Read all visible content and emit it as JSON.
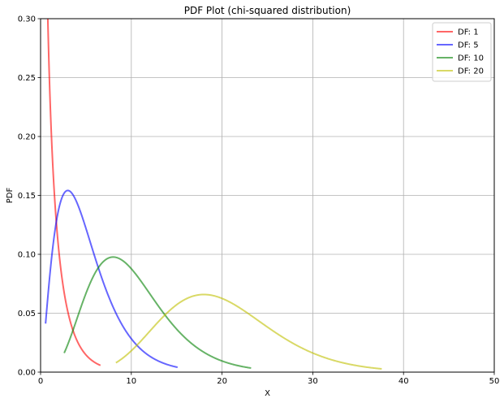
{
  "chart_data": {
    "type": "line",
    "title": "PDF Plot (chi-squared distribution)",
    "xlabel": "X",
    "ylabel": "PDF",
    "xlim": [
      0,
      50
    ],
    "ylim": [
      0,
      0.3
    ],
    "xticks": [
      0,
      10,
      20,
      30,
      40,
      50
    ],
    "yticks": [
      0.0,
      0.05,
      0.1,
      0.15,
      0.2,
      0.25,
      0.3
    ],
    "grid": true,
    "legend_position": "top-right",
    "series": [
      {
        "name": "DF: 1",
        "df": 1,
        "x_start": 0.15,
        "x_end": 6.6,
        "color": "#ff0000"
      },
      {
        "name": "DF: 5",
        "df": 5,
        "x_start": 0.55,
        "x_end": 15.1,
        "color": "#0000ff"
      },
      {
        "name": "DF: 10",
        "df": 10,
        "x_start": 2.6,
        "x_end": 23.2,
        "color": "#008000"
      },
      {
        "name": "DF: 20",
        "df": 20,
        "x_start": 8.3,
        "x_end": 37.6,
        "color": "#bfbf00"
      }
    ]
  }
}
